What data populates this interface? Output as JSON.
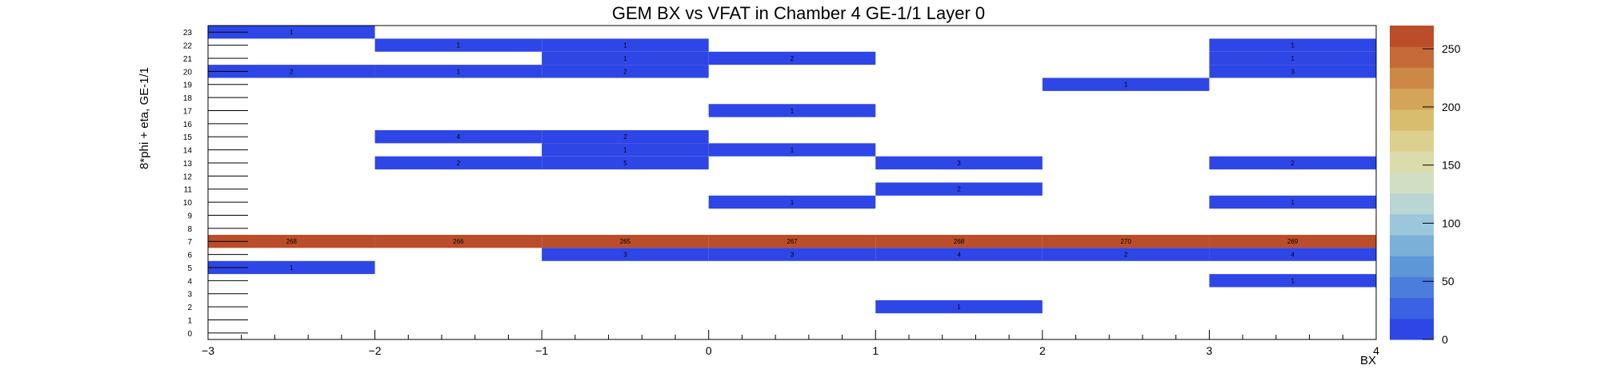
{
  "chart_data": {
    "type": "heatmap",
    "title": "GEM BX vs VFAT in Chamber 4 GE-1/1 Layer 0",
    "xlabel": "BX",
    "ylabel": "8*phi + eta, GE-1/1",
    "xlim": [
      -3,
      4
    ],
    "x_ticks": [
      "−3",
      "−2",
      "−1",
      "0",
      "1",
      "2",
      "3",
      "4"
    ],
    "ylim": [
      0,
      24
    ],
    "y_ticks": [
      "0",
      "1",
      "2",
      "3",
      "4",
      "5",
      "6",
      "7",
      "8",
      "9",
      "10",
      "11",
      "12",
      "13",
      "14",
      "15",
      "16",
      "17",
      "18",
      "19",
      "20",
      "21",
      "22",
      "23"
    ],
    "zlim": [
      0,
      270
    ],
    "z_ticks": [
      "0",
      "50",
      "100",
      "150",
      "200",
      "250"
    ],
    "colormap": [
      "#2e46e6",
      "#3a62e2",
      "#4a7ddc",
      "#5e97d8",
      "#7bb0d8",
      "#9cc6dc",
      "#bad6d4",
      "#d1dec4",
      "#dcdbab",
      "#ddd08e",
      "#d9bd6f",
      "#d4a458",
      "#cc8846",
      "#c46b37",
      "#bb4d2a"
    ],
    "zero_color": "#ffffff",
    "cells": [
      {
        "x": -2.5,
        "y": 23,
        "value": 1
      },
      {
        "x": -1.5,
        "y": 22,
        "value": 1
      },
      {
        "x": -0.5,
        "y": 22,
        "value": 1
      },
      {
        "x": 3.5,
        "y": 22,
        "value": 1
      },
      {
        "x": -0.5,
        "y": 21,
        "value": 1
      },
      {
        "x": 0.5,
        "y": 21,
        "value": 2
      },
      {
        "x": 3.5,
        "y": 21,
        "value": 1
      },
      {
        "x": -2.5,
        "y": 20,
        "value": 2
      },
      {
        "x": -1.5,
        "y": 20,
        "value": 1
      },
      {
        "x": -0.5,
        "y": 20,
        "value": 2
      },
      {
        "x": 3.5,
        "y": 20,
        "value": 3
      },
      {
        "x": 2.5,
        "y": 19,
        "value": 1
      },
      {
        "x": 0.5,
        "y": 17,
        "value": 1
      },
      {
        "x": -1.5,
        "y": 15,
        "value": 4
      },
      {
        "x": -0.5,
        "y": 15,
        "value": 2
      },
      {
        "x": -0.5,
        "y": 14,
        "value": 1
      },
      {
        "x": 0.5,
        "y": 14,
        "value": 1
      },
      {
        "x": -1.5,
        "y": 13,
        "value": 2
      },
      {
        "x": -0.5,
        "y": 13,
        "value": 5
      },
      {
        "x": 1.5,
        "y": 13,
        "value": 3
      },
      {
        "x": 3.5,
        "y": 13,
        "value": 2
      },
      {
        "x": 1.5,
        "y": 11,
        "value": 2
      },
      {
        "x": 0.5,
        "y": 10,
        "value": 1
      },
      {
        "x": 3.5,
        "y": 10,
        "value": 1
      },
      {
        "x": -2.5,
        "y": 7,
        "value": 268
      },
      {
        "x": -1.5,
        "y": 7,
        "value": 266
      },
      {
        "x": -0.5,
        "y": 7,
        "value": 265
      },
      {
        "x": 0.5,
        "y": 7,
        "value": 267
      },
      {
        "x": 1.5,
        "y": 7,
        "value": 268
      },
      {
        "x": 2.5,
        "y": 7,
        "value": 270
      },
      {
        "x": 3.5,
        "y": 7,
        "value": 269
      },
      {
        "x": -0.5,
        "y": 6,
        "value": 3
      },
      {
        "x": 0.5,
        "y": 6,
        "value": 3
      },
      {
        "x": 1.5,
        "y": 6,
        "value": 4
      },
      {
        "x": 2.5,
        "y": 6,
        "value": 2
      },
      {
        "x": 3.5,
        "y": 6,
        "value": 4
      },
      {
        "x": -2.5,
        "y": 5,
        "value": 1
      },
      {
        "x": 3.5,
        "y": 4,
        "value": 1
      },
      {
        "x": 1.5,
        "y": 2,
        "value": 1
      }
    ]
  }
}
